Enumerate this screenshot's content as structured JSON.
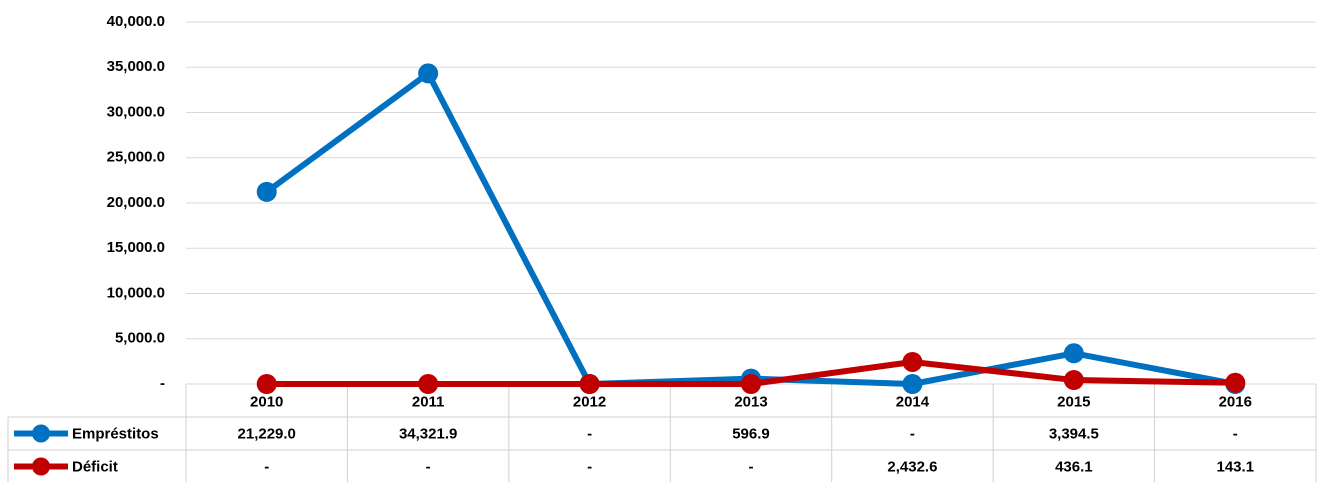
{
  "chart_data": {
    "type": "line",
    "categories": [
      "2010",
      "2011",
      "2012",
      "2013",
      "2014",
      "2015",
      "2016"
    ],
    "series": [
      {
        "name": "Empréstitos",
        "color": "#0070C0",
        "values": [
          21229.0,
          34321.9,
          0,
          596.9,
          0,
          3394.5,
          0
        ],
        "value_labels": [
          "21,229.0",
          "34,321.9",
          "-",
          "596.9",
          "-",
          "3,394.5",
          "-"
        ]
      },
      {
        "name": "Déficit",
        "color": "#C00000",
        "values": [
          0,
          0,
          0,
          0,
          2432.6,
          436.1,
          143.1
        ],
        "value_labels": [
          "-",
          "-",
          "-",
          "-",
          "2,432.6",
          "436.1",
          "143.1"
        ]
      }
    ],
    "ylim": [
      0,
      40000
    ],
    "yticks": [
      {
        "value": 0,
        "label": "-"
      },
      {
        "value": 5000,
        "label": "5,000.0"
      },
      {
        "value": 10000,
        "label": "10,000.0"
      },
      {
        "value": 15000,
        "label": "15,000.0"
      },
      {
        "value": 20000,
        "label": "20,000.0"
      },
      {
        "value": 25000,
        "label": "25,000.0"
      },
      {
        "value": 30000,
        "label": "30,000.0"
      },
      {
        "value": 35000,
        "label": "35,000.0"
      },
      {
        "value": 40000,
        "label": "40,000.0"
      }
    ],
    "grid": true
  }
}
